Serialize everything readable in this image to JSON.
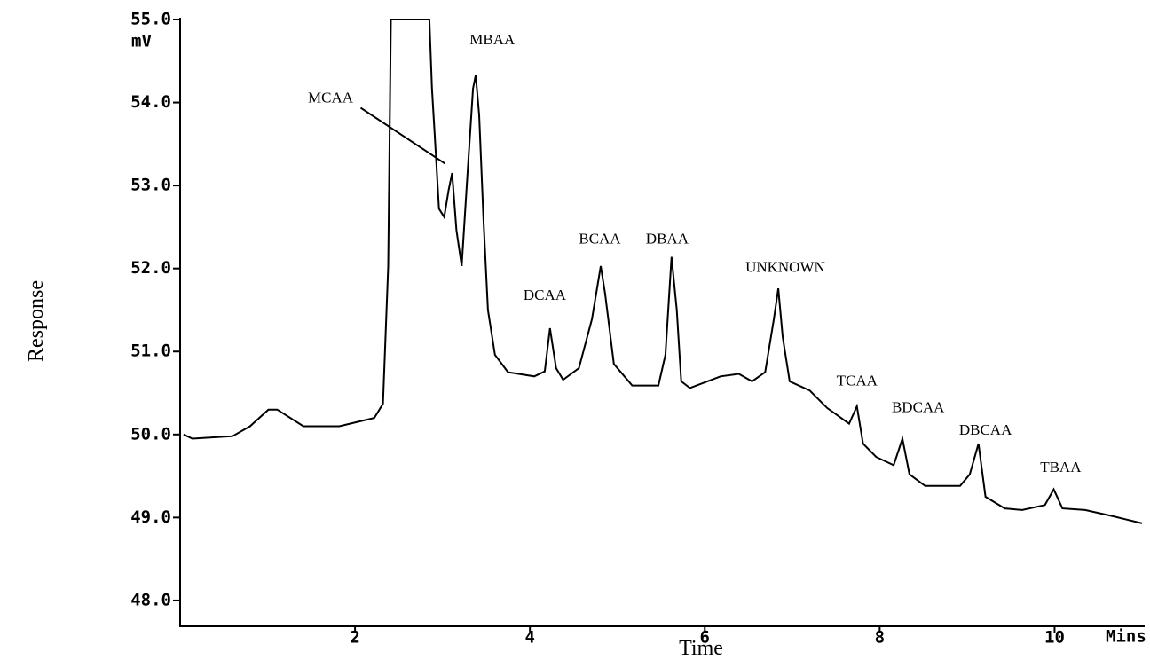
{
  "chart_data": {
    "type": "line",
    "x_label": "Time",
    "y_label": "Response",
    "x_unit": "Mins",
    "y_unit": "mV",
    "color": "#000000",
    "xlim": [
      0,
      11
    ],
    "ylim": [
      47.7,
      55
    ],
    "xticks": [
      2,
      4,
      6,
      8,
      10
    ],
    "yticks": [
      {
        "value": 48,
        "label": "48.0"
      },
      {
        "value": 49,
        "label": "49.0"
      },
      {
        "value": 50,
        "label": "50.0"
      },
      {
        "value": 51,
        "label": "51.0"
      },
      {
        "value": 52,
        "label": "52.0"
      },
      {
        "value": 53,
        "label": "53.0"
      },
      {
        "value": 54,
        "label": "54.0"
      },
      {
        "value": 55,
        "label": "55.0"
      }
    ],
    "x": [
      0.04,
      0.14,
      0.6,
      0.8,
      1.01,
      1.11,
      1.41,
      1.82,
      2.22,
      2.32,
      2.38,
      2.41,
      2.85,
      2.88,
      2.91,
      2.96,
      3.02,
      3.07,
      3.11,
      3.16,
      3.22,
      3.29,
      3.35,
      3.38,
      3.42,
      3.47,
      3.52,
      3.6,
      3.75,
      4.05,
      4.17,
      4.23,
      4.3,
      4.38,
      4.56,
      4.71,
      4.81,
      4.86,
      4.96,
      5.17,
      5.47,
      5.55,
      5.62,
      5.68,
      5.73,
      5.83,
      6.03,
      6.18,
      6.39,
      6.54,
      6.69,
      6.79,
      6.84,
      6.89,
      6.97,
      7.2,
      7.4,
      7.65,
      7.74,
      7.81,
      7.96,
      8.16,
      8.26,
      8.34,
      8.52,
      8.92,
      9.03,
      9.13,
      9.21,
      9.43,
      9.63,
      9.89,
      9.99,
      10.09,
      10.35,
      10.65,
      11.0
    ],
    "values": [
      50.0,
      49.95,
      49.98,
      50.1,
      50.3,
      50.3,
      50.1,
      50.1,
      50.2,
      50.37,
      52.03,
      55.0,
      55.0,
      54.17,
      53.63,
      52.72,
      52.62,
      52.94,
      53.15,
      52.46,
      52.03,
      53.2,
      54.17,
      54.33,
      53.85,
      52.56,
      51.5,
      50.96,
      50.75,
      50.7,
      50.76,
      51.28,
      50.8,
      50.66,
      50.8,
      51.39,
      52.03,
      51.7,
      50.85,
      50.59,
      50.59,
      50.96,
      52.14,
      51.5,
      50.64,
      50.56,
      50.64,
      50.7,
      50.73,
      50.64,
      50.75,
      51.39,
      51.76,
      51.18,
      50.64,
      50.53,
      50.32,
      50.13,
      50.34,
      49.89,
      49.73,
      49.63,
      49.95,
      49.52,
      49.38,
      49.38,
      49.52,
      49.89,
      49.25,
      49.11,
      49.09,
      49.15,
      49.34,
      49.11,
      49.09,
      49.02,
      48.93
    ],
    "annotations": [
      {
        "text": "MCAA",
        "x": 1.72,
        "y": 54.0,
        "xy": [
          3.07,
          53.2
        ]
      },
      {
        "text": "MBAA",
        "x": 3.57,
        "y": 54.7
      },
      {
        "text": "DCAA",
        "x": 4.17,
        "y": 51.62
      },
      {
        "text": "BCAA",
        "x": 4.8,
        "y": 52.3
      },
      {
        "text": "DBAA",
        "x": 5.57,
        "y": 52.3
      },
      {
        "text": "UNKNOWN",
        "x": 6.92,
        "y": 51.96
      },
      {
        "text": "TCAA",
        "x": 7.74,
        "y": 50.59
      },
      {
        "text": "BDCAA",
        "x": 8.44,
        "y": 50.27
      },
      {
        "text": "DBCAA",
        "x": 9.21,
        "y": 50.0
      },
      {
        "text": "TBAA",
        "x": 10.07,
        "y": 49.55
      }
    ]
  }
}
